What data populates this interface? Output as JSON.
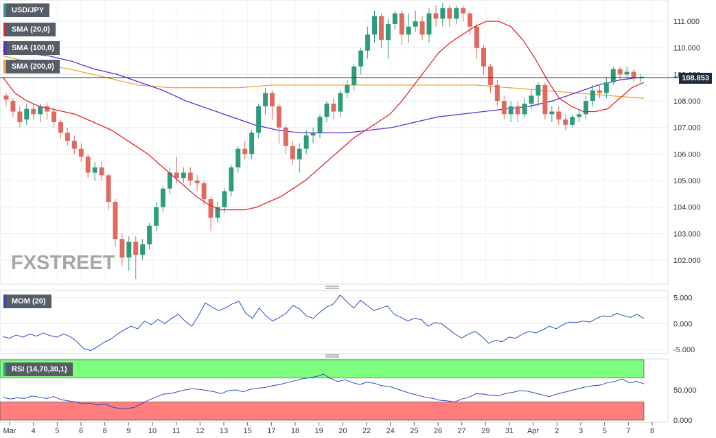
{
  "symbol": "USD/JPY",
  "indicators": {
    "sma20": "SMA (20,0)",
    "sma100": "SMA (100,0)",
    "sma200": "SMA (200,0)",
    "mom": "MOM (20)",
    "rsi": "RSI (14,70,30,1)"
  },
  "colors": {
    "sma20": "#e3262c",
    "sma100": "#5b2bd6",
    "sma200": "#f2a03d",
    "up": "#2e9c7c",
    "down": "#e06a5f",
    "mom_line": "#2849c9",
    "rsi_line": "#2849c9",
    "rsi_overbought": "#7dff7d",
    "rsi_oversold": "#ff7d7d",
    "brand": "#a6a6a6"
  },
  "current_price": "108.853",
  "watermark": "FXSTREET",
  "chart_data": [
    {
      "type": "candlestick",
      "panel": "price",
      "ylim": [
        101.2,
        111.7
      ],
      "y_ticks": [
        "102.000",
        "103.000",
        "104.000",
        "105.000",
        "106.000",
        "107.000",
        "108.000",
        "109.000",
        "110.000",
        "111.000"
      ],
      "x_tick_labels": [
        "Mar",
        "4",
        "5",
        "6",
        "8",
        "9",
        "10",
        "11",
        "12",
        "13",
        "15",
        "17",
        "18",
        "19",
        "20",
        "22",
        "24",
        "25",
        "26",
        "27",
        "29",
        "31",
        "Apr",
        "2",
        "3",
        "5",
        "7",
        "8"
      ],
      "candles": [
        [
          108.2,
          108.05,
          108.3,
          107.8
        ],
        [
          108.0,
          107.6,
          108.1,
          107.4
        ],
        [
          107.6,
          107.2,
          107.8,
          107.0
        ],
        [
          107.3,
          107.7,
          107.9,
          107.1
        ],
        [
          107.7,
          107.5,
          107.9,
          107.3
        ],
        [
          107.5,
          107.8,
          107.9,
          107.2
        ],
        [
          107.8,
          107.6,
          107.95,
          107.3
        ],
        [
          107.6,
          107.2,
          107.8,
          107.0
        ],
        [
          107.2,
          106.8,
          107.3,
          106.6
        ],
        [
          106.8,
          106.5,
          107.0,
          106.3
        ],
        [
          106.5,
          106.2,
          106.7,
          106.0
        ],
        [
          106.2,
          105.9,
          106.4,
          105.7
        ],
        [
          105.9,
          105.3,
          106.0,
          105.1
        ],
        [
          105.3,
          105.5,
          105.7,
          105.0
        ],
        [
          105.5,
          105.2,
          105.7,
          105.0
        ],
        [
          105.2,
          104.2,
          105.3,
          103.9
        ],
        [
          104.2,
          102.8,
          104.3,
          102.5
        ],
        [
          102.8,
          102.1,
          103.0,
          101.8
        ],
        [
          102.1,
          102.7,
          102.9,
          101.6
        ],
        [
          102.7,
          102.2,
          102.9,
          101.3
        ],
        [
          102.2,
          102.6,
          102.8,
          102.0
        ],
        [
          102.6,
          103.3,
          103.4,
          102.4
        ],
        [
          103.3,
          104.0,
          104.2,
          103.1
        ],
        [
          104.0,
          104.7,
          104.8,
          103.8
        ],
        [
          104.7,
          105.3,
          105.5,
          104.5
        ],
        [
          105.3,
          105.1,
          105.9,
          104.9
        ],
        [
          105.1,
          105.3,
          105.5,
          104.9
        ],
        [
          105.3,
          105.0,
          105.5,
          104.8
        ],
        [
          105.0,
          104.9,
          105.2,
          104.6
        ],
        [
          104.9,
          104.3,
          105.0,
          104.1
        ],
        [
          104.3,
          103.6,
          104.4,
          103.1
        ],
        [
          103.6,
          104.0,
          104.2,
          103.4
        ],
        [
          104.0,
          104.6,
          104.7,
          103.8
        ],
        [
          104.6,
          105.5,
          105.6,
          104.4
        ],
        [
          105.5,
          106.2,
          106.3,
          105.3
        ],
        [
          106.2,
          106.0,
          106.5,
          105.8
        ],
        [
          106.0,
          106.8,
          106.9,
          105.8
        ],
        [
          106.8,
          107.8,
          107.9,
          106.6
        ],
        [
          107.8,
          108.3,
          108.5,
          107.5
        ],
        [
          108.3,
          107.8,
          108.4,
          107.3
        ],
        [
          107.8,
          107.0,
          107.9,
          106.4
        ],
        [
          107.0,
          106.3,
          107.1,
          106.0
        ],
        [
          106.3,
          105.8,
          106.5,
          105.6
        ],
        [
          105.8,
          106.2,
          106.4,
          105.3
        ],
        [
          106.2,
          106.7,
          106.9,
          106.0
        ],
        [
          106.7,
          106.8,
          107.0,
          106.4
        ],
        [
          106.8,
          107.4,
          107.5,
          106.6
        ],
        [
          107.4,
          107.9,
          108.0,
          107.2
        ],
        [
          107.9,
          107.6,
          108.1,
          107.3
        ],
        [
          107.6,
          108.3,
          108.4,
          107.4
        ],
        [
          108.3,
          108.6,
          108.8,
          108.1
        ],
        [
          108.6,
          109.3,
          109.4,
          108.4
        ],
        [
          109.3,
          109.9,
          110.0,
          109.0
        ],
        [
          109.9,
          110.5,
          110.8,
          109.6
        ],
        [
          110.5,
          111.2,
          111.4,
          110.2
        ],
        [
          111.2,
          110.3,
          111.3,
          110.0
        ],
        [
          110.3,
          110.9,
          111.1,
          109.6
        ],
        [
          110.9,
          111.3,
          111.4,
          110.7
        ],
        [
          111.3,
          110.5,
          111.4,
          110.1
        ],
        [
          110.5,
          110.8,
          111.3,
          110.2
        ],
        [
          110.8,
          111.0,
          111.4,
          110.6
        ],
        [
          111.0,
          110.5,
          111.2,
          110.3
        ],
        [
          110.5,
          111.3,
          111.5,
          110.2
        ],
        [
          111.3,
          111.1,
          111.6,
          110.8
        ],
        [
          111.1,
          111.5,
          111.7,
          110.8
        ],
        [
          111.5,
          111.1,
          111.6,
          110.8
        ],
        [
          111.1,
          111.5,
          111.6,
          110.9
        ],
        [
          111.5,
          111.3,
          111.6,
          111.0
        ],
        [
          111.3,
          110.8,
          111.4,
          110.5
        ],
        [
          110.8,
          110.0,
          110.9,
          109.6
        ],
        [
          110.0,
          109.3,
          110.1,
          109.0
        ],
        [
          109.3,
          108.6,
          109.4,
          108.3
        ],
        [
          108.6,
          108.0,
          108.8,
          107.8
        ],
        [
          108.0,
          107.5,
          108.2,
          107.3
        ],
        [
          107.5,
          107.8,
          108.0,
          107.2
        ],
        [
          107.8,
          107.5,
          108.0,
          107.2
        ],
        [
          107.5,
          107.9,
          108.1,
          107.4
        ],
        [
          107.9,
          108.2,
          108.4,
          107.7
        ],
        [
          108.2,
          108.6,
          108.7,
          107.8
        ],
        [
          108.6,
          107.5,
          108.7,
          107.3
        ],
        [
          107.5,
          107.6,
          107.8,
          107.2
        ],
        [
          107.6,
          107.3,
          107.8,
          107.1
        ],
        [
          107.3,
          107.1,
          107.5,
          106.9
        ],
        [
          107.1,
          107.4,
          107.5,
          107.0
        ],
        [
          107.4,
          107.5,
          107.7,
          107.2
        ],
        [
          107.5,
          108.0,
          108.2,
          107.3
        ],
        [
          108.0,
          108.4,
          108.6,
          107.8
        ],
        [
          108.4,
          108.3,
          108.6,
          108.1
        ],
        [
          108.3,
          108.7,
          108.9,
          108.1
        ],
        [
          108.7,
          109.2,
          109.3,
          108.6
        ],
        [
          109.2,
          109.0,
          109.3,
          108.8
        ],
        [
          109.0,
          109.1,
          109.3,
          108.8
        ],
        [
          109.1,
          108.85,
          109.2,
          108.7
        ],
        [
          108.85,
          108.9,
          109.0,
          108.7
        ]
      ],
      "series": [
        {
          "name": "SMA (20,0)",
          "values": [
            108.9,
            108.3,
            108.0,
            107.8,
            107.7,
            107.6,
            107.5,
            107.3,
            107.1,
            106.9,
            106.6,
            106.3,
            106.0,
            105.6,
            105.2,
            104.8,
            104.4,
            104.1,
            103.9,
            103.9,
            103.9,
            104.0,
            104.2,
            104.4,
            104.7,
            105.0,
            105.4,
            105.8,
            106.2,
            106.6,
            106.9,
            107.2,
            107.5,
            108.0,
            108.6,
            109.2,
            109.8,
            110.2,
            110.5,
            110.8,
            111.0,
            111.0,
            110.8,
            110.3,
            109.6,
            108.8,
            108.1,
            107.8,
            107.6,
            107.6,
            107.7,
            108.1,
            108.5,
            108.7
          ]
        },
        {
          "name": "SMA (100,0)",
          "values": [
            109.9,
            109.8,
            109.7,
            109.5,
            109.2,
            109.0,
            108.7,
            108.4,
            108.0,
            107.7,
            107.4,
            107.1,
            106.9,
            106.8,
            106.8,
            106.8,
            106.9,
            107.0,
            107.2,
            107.4,
            107.5,
            107.6,
            107.7,
            107.8,
            108.0,
            108.3,
            108.6,
            108.8,
            108.9
          ]
        },
        {
          "name": "SMA (200,0)",
          "values": [
            109.7,
            109.4,
            109.2,
            108.9,
            108.6,
            108.5,
            108.5,
            108.5,
            108.6,
            108.6,
            108.6,
            108.6,
            108.6,
            108.6,
            108.6,
            108.5,
            108.4,
            108.3,
            108.2,
            108.1
          ]
        }
      ]
    },
    {
      "type": "line",
      "panel": "momentum",
      "name": "MOM (20)",
      "ylim": [
        -5.5,
        6.0
      ],
      "y_ticks": [
        "-5.000",
        "0.000",
        "5.000"
      ],
      "values": [
        -2.5,
        -2.8,
        -2.2,
        -2.6,
        -2.0,
        -2.4,
        -1.8,
        -2.3,
        -2.6,
        -2.0,
        -2.5,
        -3.5,
        -4.8,
        -5.2,
        -4.5,
        -3.6,
        -3.0,
        -2.0,
        -1.2,
        -0.5,
        -1.0,
        0.5,
        -0.2,
        0.8,
        0.0,
        1.0,
        1.8,
        0.5,
        -0.5,
        1.5,
        4.0,
        3.2,
        2.5,
        3.0,
        3.8,
        4.3,
        2.0,
        1.0,
        3.0,
        1.5,
        0.5,
        1.2,
        2.0,
        3.5,
        2.8,
        1.5,
        1.0,
        2.2,
        3.2,
        3.8,
        5.5,
        4.2,
        3.0,
        4.5,
        3.5,
        2.5,
        3.0,
        3.4,
        1.8,
        1.2,
        0.5,
        1.0,
        0.8,
        -0.5,
        0.2,
        0.0,
        -1.0,
        -2.0,
        -2.8,
        -2.0,
        -1.5,
        -2.5,
        -3.8,
        -3.2,
        -3.5,
        -2.6,
        -2.8,
        -2.0,
        -1.5,
        -1.8,
        -1.2,
        -0.5,
        -1.0,
        -0.2,
        0.3,
        0.2,
        0.5,
        0.3,
        1.0,
        1.5,
        1.3,
        2.0,
        1.5,
        1.2,
        1.8,
        1.0
      ]
    },
    {
      "type": "line",
      "panel": "rsi",
      "name": "RSI (14,70,30,1)",
      "ylim": [
        0,
        100
      ],
      "y_ticks": [
        "0.000",
        "50.000"
      ],
      "overbought": 70,
      "oversold": 30,
      "values": [
        38,
        35,
        37,
        36,
        40,
        38,
        36,
        39,
        34,
        32,
        30,
        27,
        28,
        25,
        27,
        22,
        19,
        19,
        21,
        27,
        33,
        38,
        43,
        44,
        47,
        50,
        52,
        51,
        49,
        47,
        44,
        49,
        50,
        47,
        51,
        53,
        54,
        57,
        59,
        62,
        65,
        68,
        70,
        72,
        76,
        69,
        64,
        67,
        62,
        59,
        63,
        61,
        57,
        56,
        52,
        48,
        44,
        41,
        38,
        36,
        33,
        32,
        30,
        35,
        38,
        44,
        43,
        41,
        40,
        44,
        46,
        49,
        48,
        45,
        42,
        39,
        43,
        46,
        49,
        52,
        55,
        57,
        58,
        62,
        64,
        68,
        62,
        64,
        60
      ]
    }
  ]
}
